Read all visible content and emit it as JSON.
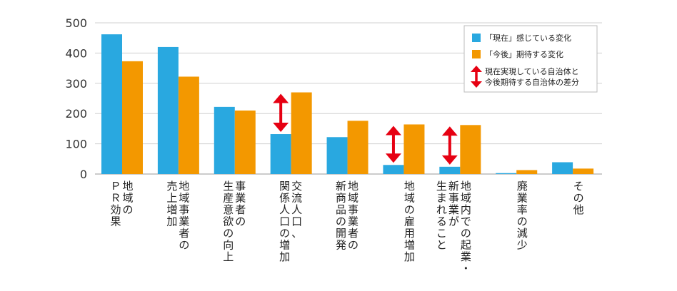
{
  "chart_data": {
    "type": "bar",
    "title": "",
    "xlabel": "",
    "ylabel": "",
    "ylim": [
      0,
      500
    ],
    "yticks": [
      0,
      100,
      200,
      300,
      400,
      500
    ],
    "grid": true,
    "legend_position": "top-right",
    "categories": [
      [
        "地域の",
        "ＰＲ効果"
      ],
      [
        "地域事業者の",
        "売上増加"
      ],
      [
        "事業者の",
        "生産意欲の向上"
      ],
      [
        "交流人口、",
        "関係人口の増加"
      ],
      [
        "地域事業者の",
        "新商品の開発"
      ],
      [
        "地域の雇用増加"
      ],
      [
        "地域内での起業・",
        "新事業が",
        "生まれること"
      ],
      [
        "廃業率の減少"
      ],
      [
        "その他"
      ]
    ],
    "series": [
      {
        "name": "「現在」感じている変化",
        "color": "#29a8e0",
        "values": [
          462,
          420,
          222,
          132,
          122,
          30,
          24,
          3,
          39
        ]
      },
      {
        "name": "「今後」期待する変化",
        "color": "#f39800",
        "values": [
          373,
          322,
          210,
          270,
          176,
          164,
          162,
          13,
          18
        ]
      }
    ],
    "gap_arrows_categories": [
      3,
      5,
      6
    ],
    "gap_legend": [
      "現在実現している自治体と",
      "今後期待する自治体の差分"
    ],
    "arrow_color": "#e60012"
  }
}
